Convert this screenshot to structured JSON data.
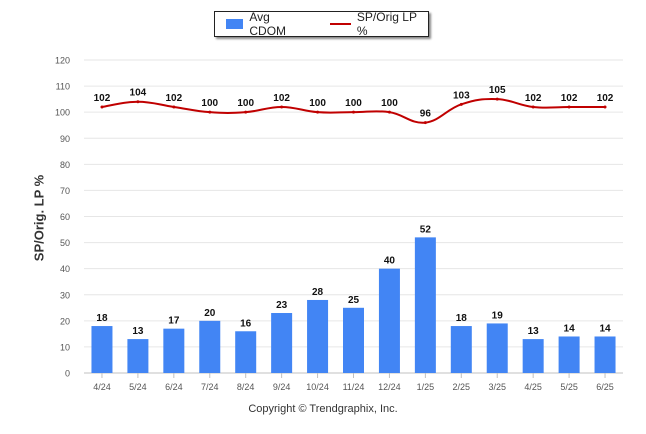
{
  "chart_data": {
    "type": "bar",
    "categories": [
      "4/24",
      "5/24",
      "6/24",
      "7/24",
      "8/24",
      "9/24",
      "10/24",
      "11/24",
      "12/24",
      "1/25",
      "2/25",
      "3/25",
      "4/25",
      "5/25",
      "6/25"
    ],
    "series": [
      {
        "name": "Avg CDOM",
        "type": "bar",
        "color": "#4285f4",
        "values": [
          18,
          13,
          17,
          20,
          16,
          23,
          28,
          25,
          40,
          52,
          18,
          19,
          13,
          14,
          14
        ]
      },
      {
        "name": "SP/Orig LP %",
        "type": "line",
        "color": "#c00000",
        "values": [
          102,
          104,
          102,
          100,
          100,
          102,
          100,
          100,
          100,
          96,
          103,
          105,
          102,
          102,
          102
        ]
      }
    ],
    "ylabel": "SP/Orig. LP %",
    "ylim": [
      0,
      120
    ],
    "yticks": [
      0,
      10,
      20,
      30,
      40,
      50,
      60,
      70,
      80,
      90,
      100,
      110,
      120
    ],
    "grid": true,
    "legend_position": "top-center"
  },
  "legend": {
    "bar_label": "Avg CDOM",
    "line_label": "SP/Orig LP %"
  },
  "credit": "Copyright © Trendgraphix, Inc."
}
